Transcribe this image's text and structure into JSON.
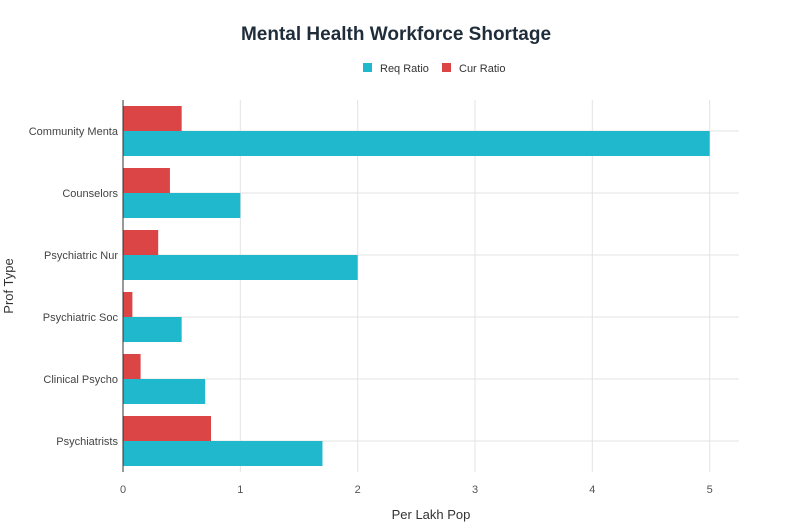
{
  "chart_data": {
    "type": "bar",
    "orientation": "horizontal",
    "title": "Mental Health Workforce Shortage",
    "xlabel": "Per Lakh Pop",
    "ylabel": "Prof Type",
    "categories": [
      "Community Menta",
      "Counselors",
      "Psychiatric Nur",
      "Psychiatric Soc",
      "Clinical Psycho",
      "Psychiatrists"
    ],
    "series": [
      {
        "name": "Req Ratio",
        "color": "#1FB8CD",
        "values": [
          5,
          1,
          2,
          0.5,
          0.7,
          1.7
        ]
      },
      {
        "name": "Cur Ratio",
        "color": "#DB4545",
        "values": [
          0.5,
          0.4,
          0.3,
          0.08,
          0.15,
          0.75
        ]
      }
    ],
    "xlim": [
      0,
      5.25
    ],
    "xticks": [
      "0",
      "1",
      "2",
      "3",
      "4",
      "5"
    ],
    "xtick_values": [
      0,
      1,
      2,
      3,
      4,
      5
    ],
    "grid": true,
    "legend_position": "top-center"
  }
}
